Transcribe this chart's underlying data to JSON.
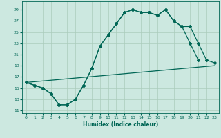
{
  "xlabel": "Humidex (Indice chaleur)",
  "bg_color": "#cce8e0",
  "grid_color": "#aaccbb",
  "line_color": "#006655",
  "xlim": [
    -0.5,
    23.5
  ],
  "ylim": [
    10.5,
    30.5
  ],
  "yticks": [
    11,
    13,
    15,
    17,
    19,
    21,
    23,
    25,
    27,
    29
  ],
  "xticks": [
    0,
    1,
    2,
    3,
    4,
    5,
    6,
    7,
    8,
    9,
    10,
    11,
    12,
    13,
    14,
    15,
    16,
    17,
    18,
    19,
    20,
    21,
    22,
    23
  ],
  "series1_x": [
    0,
    1,
    2,
    3,
    4,
    5,
    6,
    7,
    8,
    9,
    10,
    11,
    12,
    13,
    14,
    15,
    16,
    17,
    18,
    19,
    20,
    21
  ],
  "series1_y": [
    16.0,
    15.5,
    15.0,
    14.0,
    12.0,
    12.0,
    13.0,
    15.5,
    18.5,
    22.5,
    24.5,
    26.5,
    28.5,
    29.0,
    28.5,
    28.5,
    28.0,
    29.0,
    27.0,
    26.0,
    23.0,
    20.0
  ],
  "series2_x": [
    0,
    1,
    2,
    3,
    4,
    5,
    6,
    7,
    8,
    9,
    10,
    11,
    12,
    13,
    14,
    15,
    16,
    17,
    18,
    19,
    20,
    21,
    22,
    23
  ],
  "series2_y": [
    16.0,
    15.5,
    15.0,
    14.0,
    12.0,
    12.0,
    13.0,
    15.5,
    18.5,
    22.5,
    24.5,
    26.5,
    28.5,
    29.0,
    28.5,
    28.5,
    28.0,
    29.0,
    27.0,
    26.0,
    26.0,
    23.0,
    20.0,
    19.5
  ],
  "series3_x": [
    0,
    23
  ],
  "series3_y": [
    16.0,
    19.0
  ]
}
